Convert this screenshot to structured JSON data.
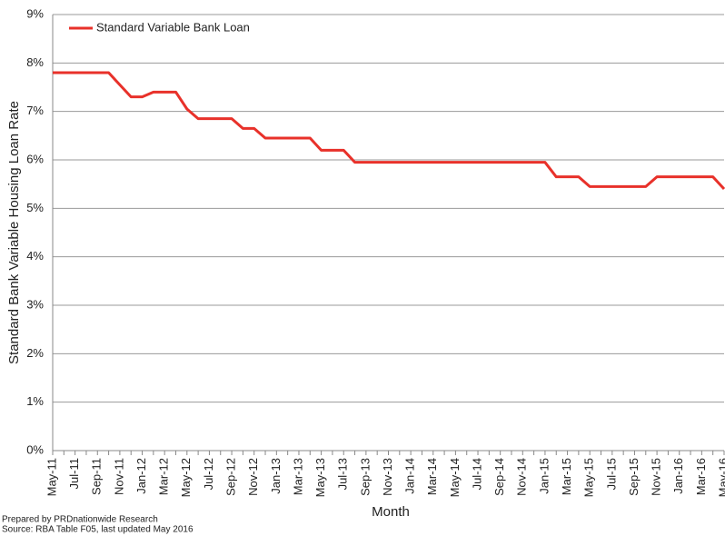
{
  "chart_data": {
    "type": "line",
    "x_label": "Month",
    "y_label": "Standard Bank Variable Housing  Loan Rate",
    "footnotes": [
      "Prepared by PRDnationwide Research",
      "Source: RBA Table F05, last updated May 2016"
    ],
    "categories": [
      "May-11",
      null,
      "Jul-11",
      null,
      "Sep-11",
      null,
      "Nov-11",
      null,
      "Jan-12",
      null,
      "Mar-12",
      null,
      "May-12",
      null,
      "Jul-12",
      null,
      "Sep-12",
      null,
      "Nov-12",
      null,
      "Jan-13",
      null,
      "Mar-13",
      null,
      "May-13",
      null,
      "Jul-13",
      null,
      "Sep-13",
      null,
      "Nov-13",
      null,
      "Jan-14",
      null,
      "Mar-14",
      null,
      "May-14",
      null,
      "Jul-14",
      null,
      "Sep-14",
      null,
      "Nov-14",
      null,
      "Jan-15",
      null,
      "Mar-15",
      null,
      "May-15",
      null,
      "Jul-15",
      null,
      "Sep-15",
      null,
      "Nov-15",
      null,
      "Jan-16",
      null,
      "Mar-16",
      null,
      "May-16"
    ],
    "series": [
      {
        "name": "Standard Variable Bank Loan",
        "color": "#e8312a",
        "values": [
          7.8,
          7.8,
          7.8,
          7.8,
          7.8,
          7.8,
          7.55,
          7.3,
          7.3,
          7.4,
          7.4,
          7.4,
          7.05,
          6.85,
          6.85,
          6.85,
          6.85,
          6.65,
          6.65,
          6.45,
          6.45,
          6.45,
          6.45,
          6.45,
          6.2,
          6.2,
          6.2,
          5.95,
          5.95,
          5.95,
          5.95,
          5.95,
          5.95,
          5.95,
          5.95,
          5.95,
          5.95,
          5.95,
          5.95,
          5.95,
          5.95,
          5.95,
          5.95,
          5.95,
          5.95,
          5.65,
          5.65,
          5.65,
          5.45,
          5.45,
          5.45,
          5.45,
          5.45,
          5.45,
          5.65,
          5.65,
          5.65,
          5.65,
          5.65,
          5.65,
          5.4
        ]
      }
    ],
    "ylim": [
      0,
      9
    ],
    "yticks": [
      {
        "value": 0,
        "label": "0%"
      },
      {
        "value": 1,
        "label": "1%"
      },
      {
        "value": 2,
        "label": "2%"
      },
      {
        "value": 3,
        "label": "3%"
      },
      {
        "value": 4,
        "label": "4%"
      },
      {
        "value": 5,
        "label": "5%"
      },
      {
        "value": 6,
        "label": "6%"
      },
      {
        "value": 7,
        "label": "7%"
      },
      {
        "value": 8,
        "label": "8%"
      },
      {
        "value": 9,
        "label": "9%"
      }
    ],
    "grid": true,
    "legend": "top-left"
  }
}
